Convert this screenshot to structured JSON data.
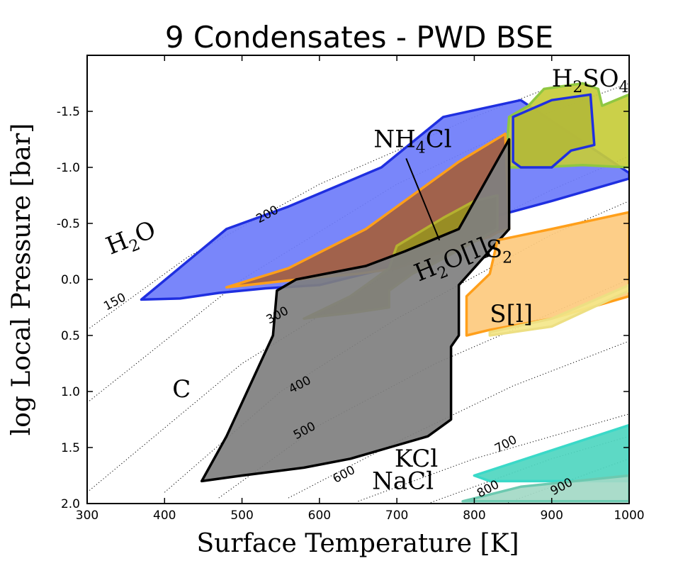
{
  "chart_data": {
    "type": "area",
    "title": "9 Condensates - PWD BSE",
    "xlabel": "Surface Temperature [K]",
    "ylabel": "log Local Pressure [bar]",
    "xlim": [
      300,
      1000
    ],
    "ylim": [
      2.0,
      -2.0
    ],
    "y_inverted": true,
    "x_ticks": [
      300,
      400,
      500,
      600,
      700,
      800,
      900,
      1000
    ],
    "x_tick_labels": [
      "300",
      "400",
      "500",
      "600",
      "700",
      "800",
      "900",
      "1000"
    ],
    "y_ticks": [
      -1.5,
      -1.0,
      -0.5,
      0.0,
      0.5,
      1.0,
      1.5,
      2.0
    ],
    "y_tick_labels": [
      "-1.5",
      "-1.0",
      "-0.5",
      "0.0",
      "0.5",
      "1.0",
      "1.5",
      "2.0"
    ],
    "contours": [
      {
        "label": "150",
        "points": [
          [
            300,
            0.45
          ],
          [
            430,
            -0.2
          ],
          [
            600,
            -0.85
          ],
          [
            800,
            -1.45
          ],
          [
            900,
            -1.72
          ]
        ],
        "label_at": [
          338,
          0.23
        ]
      },
      {
        "label": "200",
        "points": [
          [
            300,
            1.1
          ],
          [
            500,
            0.0
          ],
          [
            700,
            -0.85
          ],
          [
            900,
            -1.5
          ],
          [
            1000,
            -1.75
          ]
        ],
        "label_at": [
          535,
          -0.55
        ]
      },
      {
        "label": "300",
        "points": [
          [
            300,
            1.9
          ],
          [
            500,
            0.75
          ],
          [
            700,
            -0.1
          ],
          [
            900,
            -0.8
          ],
          [
            1000,
            -1.1
          ]
        ],
        "label_at": [
          548,
          0.35
        ]
      },
      {
        "label": "400",
        "points": [
          [
            400,
            1.9
          ],
          [
            550,
            1.0
          ],
          [
            700,
            0.35
          ],
          [
            900,
            -0.4
          ],
          [
            1000,
            -0.7
          ]
        ],
        "label_at": [
          577,
          0.97
        ]
      },
      {
        "label": "500",
        "points": [
          [
            470,
            1.95
          ],
          [
            600,
            1.3
          ],
          [
            750,
            0.75
          ],
          [
            1000,
            0.0
          ]
        ],
        "label_at": [
          583,
          1.38
        ]
      },
      {
        "label": "600",
        "points": [
          [
            560,
            1.95
          ],
          [
            700,
            1.45
          ],
          [
            850,
            0.95
          ],
          [
            1000,
            0.55
          ]
        ],
        "label_at": [
          634,
          1.77
        ]
      },
      {
        "label": "700",
        "points": [
          [
            650,
            1.98
          ],
          [
            800,
            1.6
          ],
          [
            1000,
            1.2
          ]
        ],
        "label_at": [
          843,
          1.5
        ]
      },
      {
        "label": "800",
        "points": [
          [
            740,
            2.0
          ],
          [
            900,
            1.6
          ],
          [
            1000,
            1.4
          ]
        ],
        "label_at": [
          820,
          1.9
        ]
      },
      {
        "label": "900",
        "points": [
          [
            840,
            2.0
          ],
          [
            1000,
            1.6
          ]
        ],
        "label_at": [
          915,
          1.88
        ]
      }
    ],
    "series": [
      {
        "name": "H2O",
        "label_main": "H",
        "label_sub": "2",
        "label_tail": "O",
        "fill": "#6e7cfa",
        "edge": "#1f2fe0",
        "label_at": [
          330,
          -0.22
        ],
        "polygon": [
          [
            370,
            0.18
          ],
          [
            480,
            -0.45
          ],
          [
            560,
            -0.65
          ],
          [
            680,
            -1.0
          ],
          [
            760,
            -1.45
          ],
          [
            860,
            -1.6
          ],
          [
            1000,
            -0.95
          ],
          [
            1000,
            -0.9
          ],
          [
            900,
            -0.7
          ],
          [
            820,
            -0.55
          ],
          [
            760,
            -0.3
          ],
          [
            700,
            -0.12
          ],
          [
            600,
            0.05
          ],
          [
            530,
            0.08
          ],
          [
            470,
            0.12
          ],
          [
            420,
            0.17
          ]
        ]
      },
      {
        "name": "H2SO4",
        "label_main": "H",
        "label_sub": "2",
        "label_tail": "SO",
        "label_sub2": "4",
        "fill": "#c7cc3a",
        "edge": "#8fc741",
        "label_at": [
          900,
          -1.72
        ],
        "polygon": [
          [
            840,
            -1.0
          ],
          [
            845,
            -1.45
          ],
          [
            870,
            -1.55
          ],
          [
            890,
            -1.7
          ],
          [
            940,
            -1.75
          ],
          [
            960,
            -1.7
          ],
          [
            965,
            -1.55
          ],
          [
            1000,
            -1.65
          ],
          [
            1000,
            -1.0
          ],
          [
            940,
            -1.02
          ],
          [
            880,
            -1.0
          ]
        ]
      },
      {
        "name": "H2SO4 inner",
        "label_main": "",
        "fill": "#b3b83a",
        "edge": "#1f2fe0",
        "polygon": [
          [
            850,
            -1.05
          ],
          [
            850,
            -1.45
          ],
          [
            900,
            -1.6
          ],
          [
            950,
            -1.65
          ],
          [
            955,
            -1.2
          ],
          [
            925,
            -1.15
          ],
          [
            900,
            -1.0
          ],
          [
            860,
            -1.0
          ]
        ]
      },
      {
        "name": "NH4Cl",
        "label_main": "NH",
        "label_sub": "4",
        "label_tail": "Cl",
        "fill": "#a5603d",
        "edge": "#ff9f1a",
        "label_at": [
          670,
          -1.18
        ],
        "polygon": [
          [
            480,
            0.07
          ],
          [
            560,
            -0.1
          ],
          [
            660,
            -0.45
          ],
          [
            720,
            -0.75
          ],
          [
            780,
            -1.05
          ],
          [
            840,
            -1.3
          ],
          [
            845,
            -0.45
          ],
          [
            830,
            -0.42
          ],
          [
            820,
            -0.38
          ],
          [
            780,
            -0.3
          ],
          [
            740,
            -0.2
          ],
          [
            700,
            -0.1
          ],
          [
            650,
            -0.05
          ],
          [
            600,
            -0.02
          ]
        ]
      },
      {
        "name": "H2O[l]",
        "label_main": "H",
        "label_sub": "2",
        "label_tail": "O[l]",
        "fill": "#979021",
        "edge": "#b5b12f",
        "label_at": [
          728,
          0.02
        ],
        "polygon": [
          [
            580,
            0.35
          ],
          [
            640,
            0.15
          ],
          [
            690,
            -0.1
          ],
          [
            700,
            -0.3
          ],
          [
            760,
            -0.55
          ],
          [
            800,
            -0.7
          ],
          [
            830,
            -0.75
          ],
          [
            830,
            -0.45
          ],
          [
            790,
            -0.3
          ],
          [
            750,
            -0.15
          ],
          [
            720,
            -0.05
          ],
          [
            690,
            0.1
          ],
          [
            690,
            0.25
          ],
          [
            640,
            0.3
          ],
          [
            600,
            0.33
          ]
        ]
      },
      {
        "name": "C",
        "label_main": "C",
        "label_sub": "",
        "label_tail": "",
        "fill": "#7f7f7f",
        "edge": "#000000",
        "label_at": [
          410,
          1.05
        ],
        "polygon": [
          [
            448,
            1.8
          ],
          [
            480,
            1.4
          ],
          [
            510,
            0.95
          ],
          [
            540,
            0.5
          ],
          [
            545,
            0.1
          ],
          [
            570,
            0.0
          ],
          [
            660,
            -0.12
          ],
          [
            710,
            -0.25
          ],
          [
            780,
            -0.45
          ],
          [
            845,
            -1.25
          ],
          [
            845,
            -0.45
          ],
          [
            780,
            0.05
          ],
          [
            780,
            0.5
          ],
          [
            770,
            0.6
          ],
          [
            770,
            1.25
          ],
          [
            740,
            1.4
          ],
          [
            690,
            1.5
          ],
          [
            640,
            1.6
          ],
          [
            580,
            1.68
          ],
          [
            500,
            1.75
          ]
        ]
      },
      {
        "name": "S2",
        "label_main": "S",
        "label_sub": "2",
        "label_tail": "",
        "fill": "#fdca7e",
        "edge": "#ff9f1a",
        "label_at": [
          815,
          -0.2
        ],
        "polygon": [
          [
            790,
            0.5
          ],
          [
            790,
            0.15
          ],
          [
            820,
            -0.05
          ],
          [
            830,
            -0.35
          ],
          [
            900,
            -0.45
          ],
          [
            1000,
            -0.6
          ],
          [
            1000,
            0.15
          ],
          [
            900,
            0.35
          ],
          [
            820,
            0.45
          ]
        ]
      },
      {
        "name": "S[l]",
        "label_main": "S[l]",
        "label_sub": "",
        "label_tail": "",
        "fill": "#f4e78a",
        "edge": "#eddf83",
        "label_at": [
          820,
          0.38
        ],
        "polygon": [
          [
            820,
            0.47
          ],
          [
            900,
            0.35
          ],
          [
            1000,
            0.05
          ],
          [
            1000,
            0.1
          ],
          [
            900,
            0.42
          ],
          [
            820,
            0.5
          ]
        ]
      },
      {
        "name": "KCl",
        "label_main": "KCl",
        "label_sub": "",
        "label_tail": "",
        "fill": "#4fd6c0",
        "edge": "#3ad9c8",
        "label_at": [
          697,
          1.67
        ],
        "polygon": [
          [
            800,
            1.75
          ],
          [
            1000,
            1.3
          ],
          [
            1000,
            1.8
          ],
          [
            820,
            1.8
          ]
        ]
      },
      {
        "name": "NaCl",
        "label_main": "NaCl",
        "label_sub": "",
        "label_tail": "",
        "fill": "#a3d9c6",
        "edge": "#6cc9b0",
        "label_at": [
          668,
          1.87
        ],
        "polygon": [
          [
            785,
            1.98
          ],
          [
            860,
            1.85
          ],
          [
            1000,
            1.75
          ],
          [
            1000,
            1.98
          ]
        ]
      }
    ]
  }
}
